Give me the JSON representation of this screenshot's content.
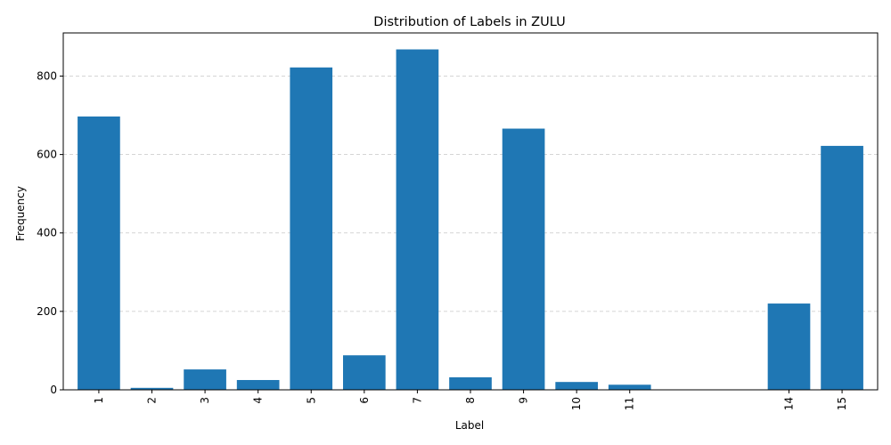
{
  "chart_data": {
    "type": "bar",
    "title": "Distribution of Labels in ZULU",
    "xlabel": "Label",
    "ylabel": "Frequency",
    "categories": [
      "1",
      "2",
      "3",
      "4",
      "5",
      "6",
      "7",
      "8",
      "9",
      "10",
      "11",
      "14",
      "15"
    ],
    "x": [
      1,
      2,
      3,
      4,
      5,
      6,
      7,
      8,
      9,
      10,
      11,
      14,
      15
    ],
    "values": [
      697,
      5,
      52,
      25,
      822,
      88,
      868,
      32,
      666,
      20,
      13,
      220,
      622
    ],
    "yticks": [
      0,
      200,
      400,
      600,
      800
    ],
    "ylim": [
      0,
      910
    ],
    "xlim": [
      0.33,
      15.67
    ],
    "grid": "y-dashed",
    "bar_color": "#1f77b4",
    "legend": "none"
  }
}
